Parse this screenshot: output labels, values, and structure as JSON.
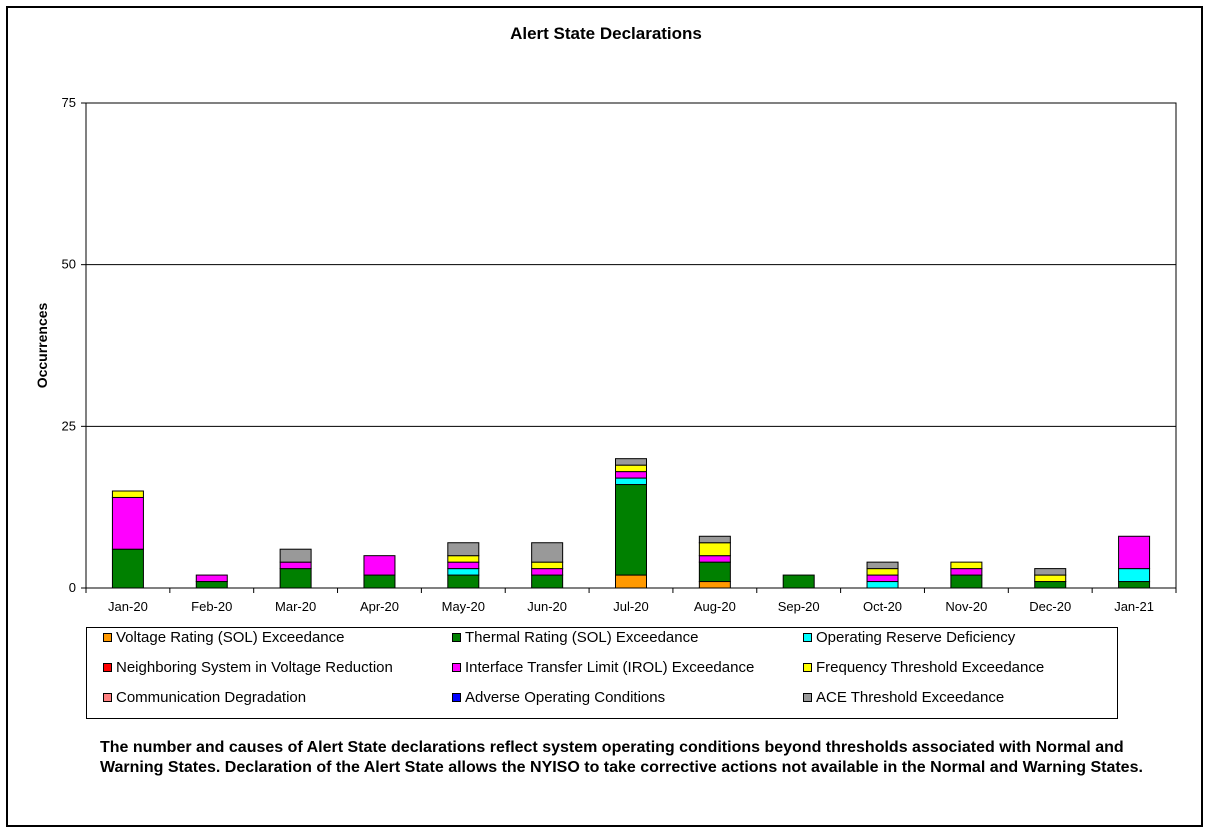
{
  "chart_data": {
    "type": "bar",
    "stacked": true,
    "title": "Alert State Declarations",
    "ylabel": "Occurrences",
    "xlabel": "",
    "ylim": [
      0,
      75
    ],
    "yticks": [
      0,
      25,
      50,
      75
    ],
    "grid": true,
    "legend_placement": "bottom",
    "categories": [
      "Jan-20",
      "Feb-20",
      "Mar-20",
      "Apr-20",
      "May-20",
      "Jun-20",
      "Jul-20",
      "Aug-20",
      "Sep-20",
      "Oct-20",
      "Nov-20",
      "Dec-20",
      "Jan-21"
    ],
    "series": [
      {
        "name": "Voltage Rating (SOL) Exceedance",
        "color": "#FF9900",
        "values": [
          0,
          0,
          0,
          0,
          0,
          0,
          2,
          1,
          0,
          0,
          0,
          0,
          0
        ]
      },
      {
        "name": "Thermal Rating (SOL) Exceedance",
        "color": "#008000",
        "values": [
          6,
          1,
          3,
          2,
          2,
          2,
          14,
          3,
          2,
          0,
          2,
          1,
          1
        ]
      },
      {
        "name": "Operating Reserve Deficiency",
        "color": "#00FFFF",
        "values": [
          0,
          0,
          0,
          0,
          1,
          0,
          1,
          0,
          0,
          1,
          0,
          0,
          2
        ]
      },
      {
        "name": "Neighboring System in Voltage Reduction",
        "color": "#FF0000",
        "values": [
          0,
          0,
          0,
          0,
          0,
          0,
          0,
          0,
          0,
          0,
          0,
          0,
          0
        ]
      },
      {
        "name": "Interface Transfer Limit (IROL) Exceedance",
        "color": "#FF00FF",
        "values": [
          8,
          1,
          1,
          3,
          1,
          1,
          1,
          1,
          0,
          1,
          1,
          0,
          5
        ]
      },
      {
        "name": "Frequency Threshold Exceedance",
        "color": "#FFFF00",
        "values": [
          1,
          0,
          0,
          0,
          1,
          1,
          1,
          2,
          0,
          1,
          1,
          1,
          0
        ]
      },
      {
        "name": "Communication Degradation",
        "color": "#FF8080",
        "values": [
          0,
          0,
          0,
          0,
          0,
          0,
          0,
          0,
          0,
          0,
          0,
          0,
          0
        ]
      },
      {
        "name": "Adverse Operating Conditions",
        "color": "#0000FF",
        "values": [
          0,
          0,
          0,
          0,
          0,
          0,
          0,
          0,
          0,
          0,
          0,
          0,
          0
        ]
      },
      {
        "name": "ACE Threshold Exceedance",
        "color": "#999999",
        "values": [
          0,
          0,
          2,
          0,
          2,
          3,
          1,
          1,
          0,
          1,
          0,
          1,
          0
        ]
      }
    ],
    "legend_order": [
      0,
      1,
      2,
      3,
      4,
      5,
      6,
      7,
      8
    ]
  },
  "note": "The number and causes of Alert State declarations reflect system operating conditions beyond thresholds associated with Normal and Warning States.  Declaration of the Alert State allows the NYISO to take corrective actions not available in the Normal and Warning States."
}
